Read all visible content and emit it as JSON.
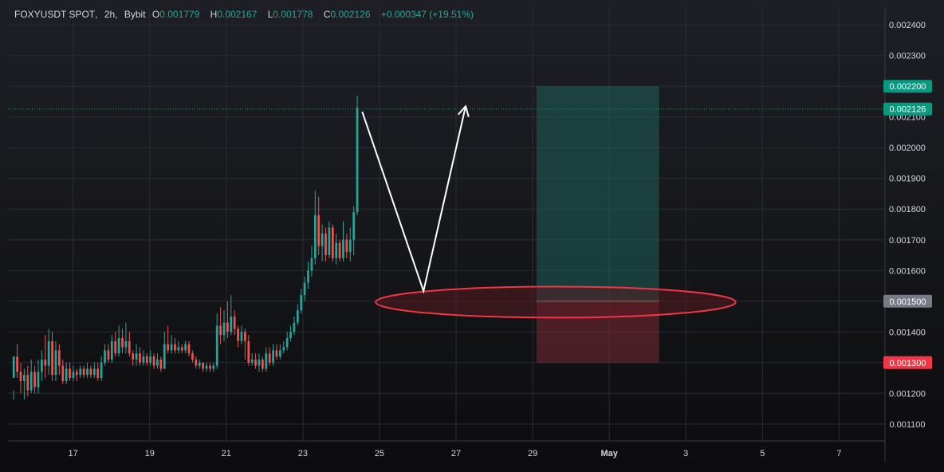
{
  "header": {
    "symbol": "FOXYUSDT SPOT",
    "interval": "2h",
    "exchange": "Bybit",
    "o_label": "O",
    "o_value": "0.001779",
    "h_label": "H",
    "h_value": "0.002167",
    "l_label": "L",
    "l_value": "0.001778",
    "c_label": "C",
    "c_value": "0.002126",
    "change": "+0.000347 (+19.51%)"
  },
  "chart_data": {
    "type": "candlestick",
    "ylim": [
      0.001045,
      0.002455
    ],
    "y_ticks": [
      "0.001100",
      "0.001200",
      "0.001300",
      "0.001400",
      "0.001500",
      "0.001600",
      "0.001700",
      "0.001800",
      "0.001900",
      "0.002000",
      "0.002100",
      "0.002200",
      "0.002300",
      "0.002400"
    ],
    "x_domain_days": [
      15.3,
      38.2
    ],
    "x_ticks": [
      {
        "label": "17",
        "day": 17
      },
      {
        "label": "19",
        "day": 19
      },
      {
        "label": "21",
        "day": 21
      },
      {
        "label": "23",
        "day": 23
      },
      {
        "label": "25",
        "day": 25
      },
      {
        "label": "27",
        "day": 27
      },
      {
        "label": "29",
        "day": 29
      },
      {
        "label": "May",
        "day": 31
      },
      {
        "label": "3",
        "day": 33
      },
      {
        "label": "5",
        "day": 35
      },
      {
        "label": "7",
        "day": 37
      }
    ],
    "candles": [
      [
        0.00125,
        0.00132,
        0.00121,
        0.00118
      ],
      [
        0.00132,
        0.00127,
        0.00136,
        0.00125
      ],
      [
        0.00127,
        0.00124,
        0.0013,
        0.0012
      ],
      [
        0.00124,
        0.00126,
        0.00128,
        0.00118
      ],
      [
        0.00126,
        0.00121,
        0.00129,
        0.00119
      ],
      [
        0.00121,
        0.00127,
        0.00131,
        0.0012
      ],
      [
        0.00127,
        0.00122,
        0.00129,
        0.0012
      ],
      [
        0.00122,
        0.00127,
        0.00131,
        0.0012
      ],
      [
        0.00127,
        0.00131,
        0.00134,
        0.00124
      ],
      [
        0.00131,
        0.00129,
        0.00139,
        0.00125
      ],
      [
        0.00129,
        0.00137,
        0.00141,
        0.00126
      ],
      [
        0.00137,
        0.00126,
        0.0014,
        0.00124
      ],
      [
        0.00126,
        0.00134,
        0.00137,
        0.00124
      ],
      [
        0.00134,
        0.00129,
        0.00136,
        0.00126
      ],
      [
        0.00129,
        0.00124,
        0.00131,
        0.00123
      ],
      [
        0.00124,
        0.00128,
        0.0013,
        0.00123
      ],
      [
        0.00128,
        0.00125,
        0.0013,
        0.00124
      ],
      [
        0.00125,
        0.00127,
        0.00129,
        0.00124
      ],
      [
        0.00127,
        0.00126,
        0.00128,
        0.00124
      ],
      [
        0.00126,
        0.00128,
        0.00129,
        0.00125
      ],
      [
        0.00128,
        0.00126,
        0.00129,
        0.00125
      ],
      [
        0.00126,
        0.00128,
        0.0013,
        0.00125
      ],
      [
        0.00128,
        0.00126,
        0.00129,
        0.00125
      ],
      [
        0.00126,
        0.00128,
        0.0013,
        0.00125
      ],
      [
        0.00128,
        0.00125,
        0.0013,
        0.00124
      ],
      [
        0.00125,
        0.0013,
        0.00132,
        0.00124
      ],
      [
        0.0013,
        0.00134,
        0.00136,
        0.00129
      ],
      [
        0.00134,
        0.00131,
        0.00136,
        0.0013
      ],
      [
        0.00131,
        0.00137,
        0.00139,
        0.0013
      ],
      [
        0.00137,
        0.00133,
        0.0014,
        0.00132
      ],
      [
        0.00133,
        0.00138,
        0.00142,
        0.00132
      ],
      [
        0.00138,
        0.00135,
        0.00141,
        0.00133
      ],
      [
        0.00135,
        0.00137,
        0.00143,
        0.00133
      ],
      [
        0.00137,
        0.00133,
        0.0014,
        0.00132
      ],
      [
        0.00133,
        0.00131,
        0.00134,
        0.00129
      ],
      [
        0.00131,
        0.00133,
        0.00136,
        0.00129
      ],
      [
        0.00133,
        0.0013,
        0.00135,
        0.00129
      ],
      [
        0.0013,
        0.00132,
        0.00134,
        0.00129
      ],
      [
        0.00132,
        0.0013,
        0.00133,
        0.00129
      ],
      [
        0.0013,
        0.00132,
        0.00134,
        0.00129
      ],
      [
        0.00132,
        0.00129,
        0.00133,
        0.00128
      ],
      [
        0.00129,
        0.00131,
        0.00133,
        0.00128
      ],
      [
        0.00131,
        0.00128,
        0.00132,
        0.00127
      ],
      [
        0.00128,
        0.00136,
        0.0014,
        0.00128
      ],
      [
        0.00136,
        0.00134,
        0.00142,
        0.00133
      ],
      [
        0.00134,
        0.00136,
        0.00139,
        0.00133
      ],
      [
        0.00136,
        0.00134,
        0.00138,
        0.00133
      ],
      [
        0.00134,
        0.00135,
        0.00137,
        0.00133
      ],
      [
        0.00135,
        0.00134,
        0.00136,
        0.00133
      ],
      [
        0.00134,
        0.00136,
        0.00137,
        0.00133
      ],
      [
        0.00136,
        0.00133,
        0.00137,
        0.00132
      ],
      [
        0.00133,
        0.00131,
        0.00134,
        0.0013
      ],
      [
        0.00131,
        0.00129,
        0.00132,
        0.00128
      ],
      [
        0.00129,
        0.0013,
        0.00131,
        0.00128
      ],
      [
        0.0013,
        0.00128,
        0.0013,
        0.00127
      ],
      [
        0.00128,
        0.00129,
        0.0013,
        0.00127
      ],
      [
        0.00129,
        0.00128,
        0.0013,
        0.00127
      ],
      [
        0.00128,
        0.00129,
        0.0013,
        0.00127
      ],
      [
        0.00129,
        0.00142,
        0.00146,
        0.00128
      ],
      [
        0.00142,
        0.00139,
        0.00148,
        0.00136
      ],
      [
        0.00139,
        0.00143,
        0.00147,
        0.00137
      ],
      [
        0.00143,
        0.0014,
        0.0015,
        0.00138
      ],
      [
        0.0014,
        0.00145,
        0.00152,
        0.00139
      ],
      [
        0.00145,
        0.00141,
        0.00147,
        0.00139
      ],
      [
        0.00141,
        0.00137,
        0.00142,
        0.00135
      ],
      [
        0.00137,
        0.0014,
        0.00142,
        0.00136
      ],
      [
        0.0014,
        0.00137,
        0.00141,
        0.00131
      ],
      [
        0.00137,
        0.0013,
        0.00139,
        0.00129
      ],
      [
        0.0013,
        0.00131,
        0.00133,
        0.00129
      ],
      [
        0.00131,
        0.00129,
        0.00133,
        0.00128
      ],
      [
        0.00129,
        0.00131,
        0.00133,
        0.00127
      ],
      [
        0.00131,
        0.00128,
        0.00132,
        0.00127
      ],
      [
        0.00128,
        0.00133,
        0.00135,
        0.00127
      ],
      [
        0.00133,
        0.0013,
        0.00135,
        0.00129
      ],
      [
        0.0013,
        0.00134,
        0.00136,
        0.00129
      ],
      [
        0.00134,
        0.00132,
        0.00136,
        0.00131
      ],
      [
        0.00132,
        0.00134,
        0.00136,
        0.00131
      ],
      [
        0.00134,
        0.00135,
        0.00137,
        0.00133
      ],
      [
        0.00135,
        0.00138,
        0.0014,
        0.00134
      ],
      [
        0.00138,
        0.0014,
        0.00142,
        0.00137
      ],
      [
        0.0014,
        0.00143,
        0.00145,
        0.00139
      ],
      [
        0.00143,
        0.00147,
        0.00149,
        0.00142
      ],
      [
        0.00147,
        0.00152,
        0.00154,
        0.00146
      ],
      [
        0.00152,
        0.00156,
        0.00158,
        0.0015
      ],
      [
        0.00156,
        0.0016,
        0.00163,
        0.00154
      ],
      [
        0.0016,
        0.00164,
        0.00168,
        0.00158
      ],
      [
        0.00164,
        0.00178,
        0.00186,
        0.00162
      ],
      [
        0.00178,
        0.00168,
        0.00184,
        0.00165
      ],
      [
        0.00168,
        0.00172,
        0.00175,
        0.00163
      ],
      [
        0.00172,
        0.00165,
        0.00174,
        0.00163
      ],
      [
        0.00165,
        0.00174,
        0.00176,
        0.00164
      ],
      [
        0.00174,
        0.00164,
        0.00175,
        0.00163
      ],
      [
        0.00164,
        0.00169,
        0.00172,
        0.00162
      ],
      [
        0.00169,
        0.00164,
        0.0017,
        0.00163
      ],
      [
        0.00164,
        0.0017,
        0.00176,
        0.00163
      ],
      [
        0.0017,
        0.00166,
        0.00172,
        0.00164
      ],
      [
        0.00166,
        0.0017,
        0.00174,
        0.00163
      ],
      [
        0.0017,
        0.00179,
        0.00181,
        0.00165
      ],
      [
        0.00179,
        0.00213,
        0.00217,
        0.00178
      ]
    ],
    "last_price": 0.002126,
    "position": {
      "x_start_day": 29.1,
      "x_end_day": 32.3,
      "target": 0.0022,
      "entry": 0.0015,
      "stop": 0.0013
    },
    "price_labels": {
      "target": "0.002200",
      "current": "0.002126",
      "entry": "0.001500",
      "stop": "0.001300"
    },
    "arrow_path": [
      [
        24.55,
        0.002117
      ],
      [
        26.15,
        0.001533
      ],
      [
        27.25,
        0.002135
      ]
    ],
    "zone_ellipse": {
      "cx_day": 29.6,
      "cy": 0.001497,
      "rx_days": 4.7,
      "ry": 5.05e-05
    },
    "colors": {
      "up": "#26a69a",
      "down": "#ef5350",
      "target_zone": "#1f6f63",
      "stop_zone": "#7a2a33",
      "ellipse_stroke": "#f23645",
      "ellipse_fill": "#5c1a22",
      "arrow": "#ffffff",
      "grid": "#2a2d36",
      "axis_text": "#d1d4dc",
      "entry_label_bg": "#787b86",
      "current_label_bg": "#089981",
      "target_label_bg": "#089981",
      "stop_label_bg": "#f23645"
    }
  }
}
